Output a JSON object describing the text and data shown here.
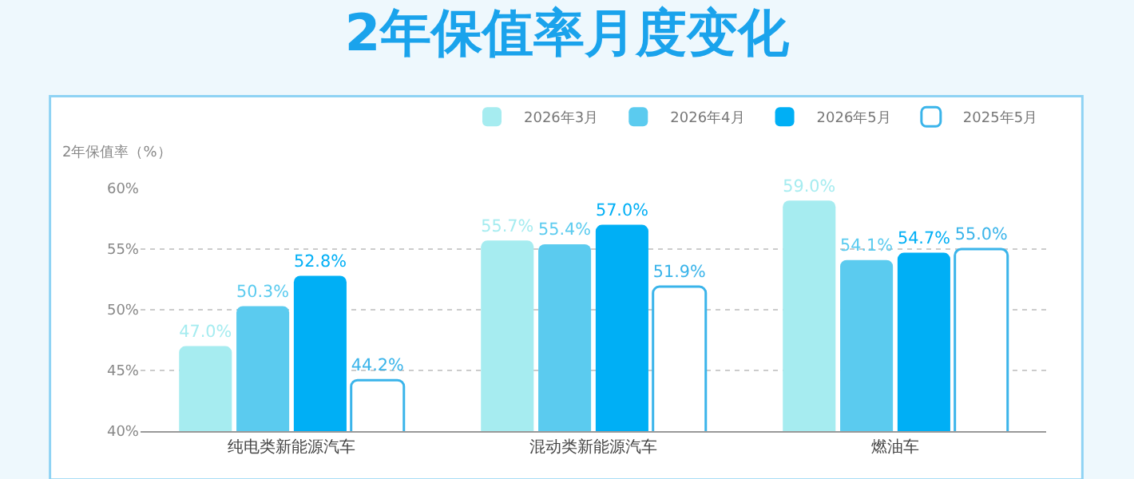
{
  "chart_data": {
    "type": "bar",
    "title": "2年保值率月度变化",
    "ylabel": "2年保值率（%）",
    "categories": [
      "纯电类新能源汽车",
      "混动类新能源汽车",
      "燃油车"
    ],
    "series": [
      {
        "name": "2026年3月",
        "color": "#a6ecf0",
        "values": [
          47.0,
          55.7,
          59.0
        ],
        "value_labels": [
          "47.0%",
          "55.7%",
          "59.0%"
        ]
      },
      {
        "name": "2026年4月",
        "color": "#5bcbef",
        "values": [
          50.3,
          55.4,
          54.1
        ],
        "value_labels": [
          "50.3%",
          "55.4%",
          "54.1%"
        ]
      },
      {
        "name": "2026年5月",
        "color": "#00aff5",
        "values": [
          52.8,
          57.0,
          54.7
        ],
        "value_labels": [
          "52.8%",
          "57.0%",
          "54.7%"
        ]
      },
      {
        "name": "2025年5月",
        "color": "#3ab4ea",
        "values": [
          44.2,
          51.9,
          55.0
        ],
        "value_labels": [
          "44.2%",
          "51.9%",
          "55.0%"
        ]
      }
    ],
    "ylim": [
      40,
      60
    ],
    "yticks": [
      {
        "value": 40,
        "label": "40%"
      },
      {
        "value": 45,
        "label": "45%"
      },
      {
        "value": 50,
        "label": "50%"
      },
      {
        "value": 55,
        "label": "55%"
      },
      {
        "value": 60,
        "label": "60%"
      }
    ],
    "grid": "y",
    "legend": "top right"
  }
}
